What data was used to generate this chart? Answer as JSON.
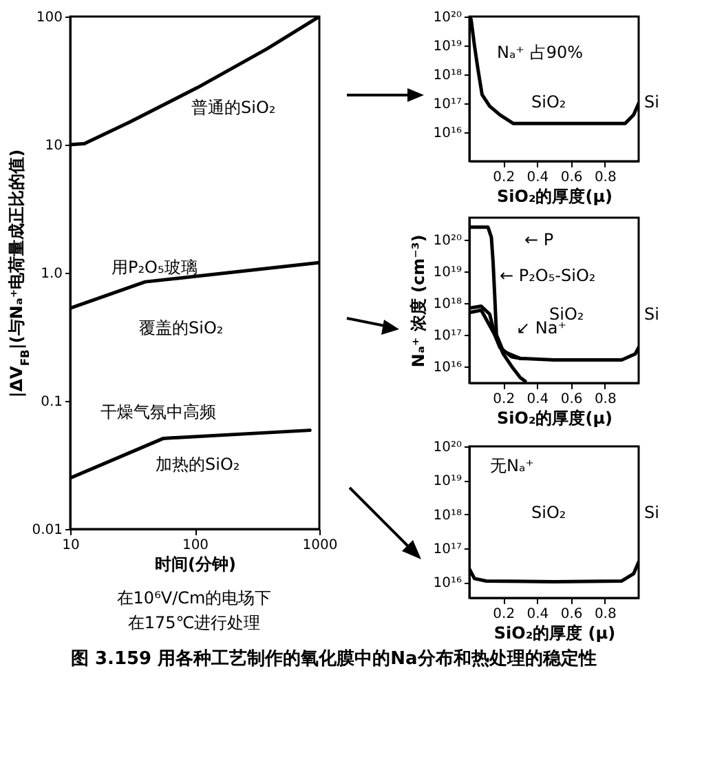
{
  "chart_data": [
    {
      "type": "line",
      "title": "图 3.159  用各种工艺制作的氧化膜中的Na分布和热处理的稳定性",
      "xlabel": "时间(分钟)",
      "ylabel": "|ΔV$_{FB}$|(与Nₐ⁺电荷量成正比的值)",
      "log": "xy",
      "grid": false,
      "xlim": [
        10,
        1000
      ],
      "xticks": [
        10,
        100,
        1000
      ],
      "ylim": [
        0.01,
        100
      ],
      "yticks": [
        0.01,
        0.1,
        {
          "value": 1,
          "label": "1.0"
        },
        10,
        100
      ],
      "series": [
        {
          "color": "#000000",
          "x": [
            10,
            13,
            30,
            106,
            380,
            1000
          ],
          "values": [
            10,
            10.2,
            15,
            28,
            56,
            100
          ]
        },
        {
          "color": "#000000",
          "x": [
            10,
            40,
            1000
          ],
          "values": [
            0.53,
            0.85,
            1.2
          ]
        },
        {
          "color": "#000000",
          "x": [
            10,
            56,
            840
          ],
          "values": [
            0.025,
            0.051,
            0.059
          ]
        }
      ],
      "annotations": [
        "普通的SiO₂",
        "用P₂O₅玻璃",
        "覆盖的SiO₂",
        "干燥气氛中高频",
        "加热的SiO₂",
        "在10⁶V/Cm的电场下",
        "在175℃进行处理"
      ]
    },
    {
      "type": "line",
      "xlabel": "SiO₂的厚度(μ)",
      "log": "y",
      "grid": false,
      "xlim": [
        0,
        1
      ],
      "xticks": [
        0.2,
        0.4,
        0.6,
        0.8
      ],
      "ylim": [
        1000000000000000.0,
        1e+20
      ],
      "yticks": [
        {
          "value": 1e+16,
          "label": "10¹⁶"
        },
        {
          "value": 1e+17,
          "label": "10¹⁷"
        },
        {
          "value": 1e+18,
          "label": "10¹⁸"
        },
        {
          "value": 1e+19,
          "label": "10¹⁹"
        },
        {
          "value": 1e+20,
          "label": "10²⁰"
        }
      ],
      "series": [
        {
          "color": "#000000",
          "x": [
            0,
            0.01,
            0.03,
            0.05,
            0.075,
            0.12,
            0.18,
            0.26,
            0.5,
            0.92,
            0.97,
            1.0
          ],
          "values": [
            1e+20,
            8e+19,
            1e+19,
            1.6e+18,
            2e+17,
            8e+16,
            4e+16,
            2e+16,
            2e+16,
            2e+16,
            4e+16,
            1e+17
          ]
        }
      ],
      "annotations": [
        "Nₐ⁺ 占90%",
        "SiO₂",
        "Si"
      ]
    },
    {
      "type": "line",
      "xlabel": "SiO₂的厚度(μ)",
      "ylabel": "Nₐ⁺ 浓度 (cm⁻³)",
      "log": "y",
      "grid": false,
      "xlim": [
        0,
        1
      ],
      "xticks": [
        0.2,
        0.4,
        0.6,
        0.8
      ],
      "ylim": [
        3000000000000000.0,
        5e+20
      ],
      "yticks": [
        {
          "value": 1e+16,
          "label": "10¹⁶"
        },
        {
          "value": 1e+17,
          "label": "10¹⁷"
        },
        {
          "value": 1e+18,
          "label": "10¹⁸"
        },
        {
          "value": 1e+19,
          "label": "10¹⁹"
        },
        {
          "value": 1e+20,
          "label": "10²⁰"
        }
      ],
      "series": [
        {
          "color": "#000000",
          "x": [
            0,
            0.11,
            0.13,
            0.14,
            0.15,
            0.16,
            0.2,
            0.3,
            0.5,
            0.9,
            0.98,
            1.0
          ],
          "values": [
            2.5e+20,
            2.5e+20,
            1.2e+20,
            2e+19,
            1.6e+18,
            1e+17,
            3e+16,
            1.8e+16,
            1.6e+16,
            1.6e+16,
            2.5e+16,
            4e+16
          ]
        },
        {
          "color": "#000000",
          "x": [
            0,
            0.07,
            0.12,
            0.15,
            0.18,
            0.25,
            0.3
          ],
          "values": [
            7e+17,
            8e+17,
            4.5e+17,
            1e+17,
            4e+16,
            2e+16,
            1.8e+16
          ]
        },
        {
          "color": "#000000",
          "x": [
            0,
            0.07,
            0.15,
            0.2,
            0.25,
            0.3,
            0.33
          ],
          "values": [
            5e+17,
            6e+17,
            1e+17,
            2.5e+16,
            1e+16,
            4500000000000000.0,
            3400000000000000.0
          ]
        }
      ],
      "annotations": [
        "← P",
        "← P₂O₅-SiO₂",
        "SiO₂",
        "↙ Na⁺",
        "Si"
      ]
    },
    {
      "type": "line",
      "xlabel": "SiO₂的厚度 (μ)",
      "log": "y",
      "grid": false,
      "xlim": [
        0,
        1
      ],
      "xticks": [
        0.2,
        0.4,
        0.6,
        0.8
      ],
      "ylim": [
        3500000000000000.0,
        1e+20
      ],
      "yticks": [
        {
          "value": 1e+16,
          "label": "10¹⁶"
        },
        {
          "value": 1e+17,
          "label": "10¹⁷"
        },
        {
          "value": 1e+18,
          "label": "10¹⁸"
        },
        {
          "value": 1e+19,
          "label": "10¹⁹"
        },
        {
          "value": 1e+20,
          "label": "10²⁰"
        }
      ],
      "series": [
        {
          "color": "#000000",
          "x": [
            0,
            0.03,
            0.1,
            0.5,
            0.9,
            0.97,
            1.0
          ],
          "values": [
            2.5e+16,
            1.3e+16,
            1.1e+16,
            1.05e+16,
            1.1e+16,
            1.8e+16,
            4e+16
          ]
        }
      ],
      "annotations": [
        "无Nₐ⁺",
        "SiO₂",
        "Si"
      ]
    }
  ]
}
